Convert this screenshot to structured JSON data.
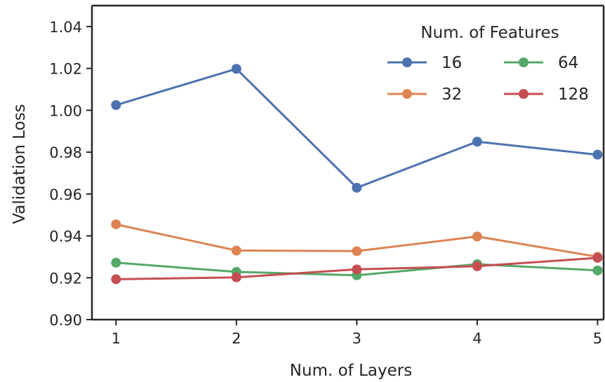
{
  "chart_data": {
    "type": "line",
    "title": "",
    "xlabel": "Num. of Layers",
    "ylabel": "Validation Loss",
    "x": [
      1,
      2,
      3,
      4,
      5
    ],
    "xlim": [
      0.8,
      5.05
    ],
    "ylim": [
      0.9,
      1.05
    ],
    "yticks": [
      0.9,
      0.92,
      0.94,
      0.96,
      0.98,
      1.0,
      1.02,
      1.04
    ],
    "ytick_labels": [
      "0.90",
      "0.92",
      "0.94",
      "0.96",
      "0.98",
      "1.00",
      "1.02",
      "1.04"
    ],
    "xtick_labels": [
      "1",
      "2",
      "3",
      "4",
      "5"
    ],
    "grid": false,
    "legend": {
      "title": "Num. of Features",
      "placement": "top-right",
      "columns": 2
    },
    "series": [
      {
        "name": "16",
        "color": "#4c72b0",
        "values": [
          1.0025,
          1.0198,
          0.963,
          0.985,
          0.9788
        ]
      },
      {
        "name": "32",
        "color": "#dd8452",
        "values": [
          0.9455,
          0.933,
          0.9327,
          0.9397,
          0.93
        ]
      },
      {
        "name": "64",
        "color": "#55a868",
        "values": [
          0.9272,
          0.9228,
          0.9212,
          0.9265,
          0.9235
        ]
      },
      {
        "name": "128",
        "color": "#c44e52",
        "values": [
          0.9193,
          0.9202,
          0.924,
          0.9255,
          0.9295
        ]
      }
    ]
  }
}
